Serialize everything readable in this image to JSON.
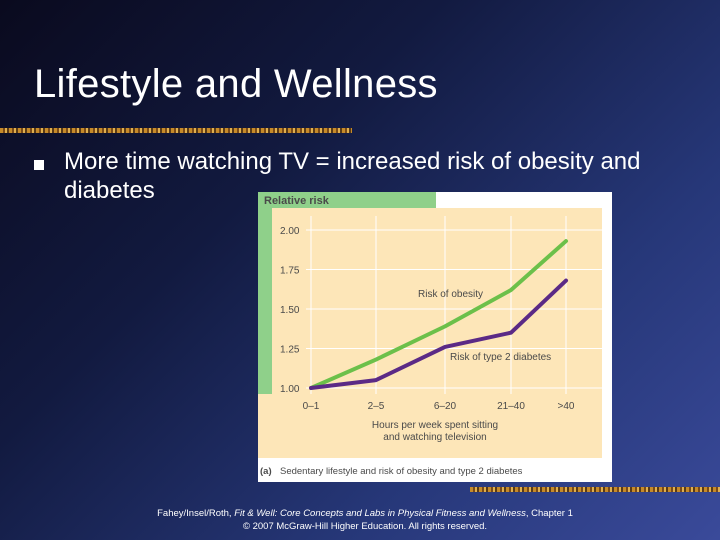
{
  "slide": {
    "title": "Lifestyle and Wellness",
    "bullet": "More time watching TV = increased risk of obesity and diabetes"
  },
  "chart_data": {
    "type": "line",
    "ylabel": "Relative risk",
    "xlabel_line1": "Hours per week spent sitting",
    "xlabel_line2": "and watching television",
    "categories": [
      "0–1",
      "2–5",
      "6–20",
      "21–40",
      ">40"
    ],
    "yticks": [
      "1.00",
      "1.25",
      "1.50",
      "1.75",
      "2.00"
    ],
    "ylim": [
      1.0,
      2.0
    ],
    "series": [
      {
        "name": "Risk of obesity",
        "color": "#6cc04a",
        "values": [
          1.0,
          1.18,
          1.39,
          1.62,
          1.93
        ]
      },
      {
        "name": "Risk of type 2 diabetes",
        "color": "#5b2a86",
        "values": [
          1.0,
          1.05,
          1.26,
          1.35,
          1.68
        ]
      }
    ],
    "caption_label": "(a)",
    "caption": "Sedentary lifestyle and risk of obesity and type 2 diabetes"
  },
  "colors": {
    "panel_green": "#8fd08a",
    "plot_bg": "#fde6b8",
    "header_text": "#4a4a4a"
  },
  "footer": {
    "authors": "Fahey/Insel/Roth,",
    "book": "Fit & Well: Core Concepts and Labs in Physical Fitness and Wellness",
    "chapter": ", Chapter 1",
    "copyright": "© 2007 McGraw-Hill Higher Education. All rights reserved."
  }
}
